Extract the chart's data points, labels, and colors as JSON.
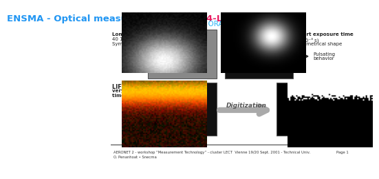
{
  "title_left": "ENSMA - Optical measurements  / ",
  "title_right": "LES-4-LPP",
  "subtitle": "« ORACLES rig »",
  "title_color_left": "#2196F3",
  "title_color_right": "#E91E63",
  "subtitle_color": "#29B6F6",
  "bg_color": "#FFFFFF",
  "label_top_left_lines": [
    "Long exposure time",
    "40 10⁻³ s",
    "Symmetrical shape"
  ],
  "label_top_right_lines": [
    "Short exposure time",
    "(2 10⁻³ s)",
    "Symmetrical shape"
  ],
  "label_arrow_right": [
    "Pulsating",
    "behavior"
  ],
  "label_bottom_left_lines": [
    "LIF on OH",
    "very short exposure",
    "time : (100 10⁻³ s)"
  ],
  "label_bottom_center": "Digitization",
  "footer_left": "AERONET 2 - workshop “Measurement Technology” - cluster LECT  Vienne 19/20 Sept. 2001 - Technical Univ.\nO. Penanhoat • Snecma",
  "footer_right": "Page 1",
  "line_color": "#555555"
}
